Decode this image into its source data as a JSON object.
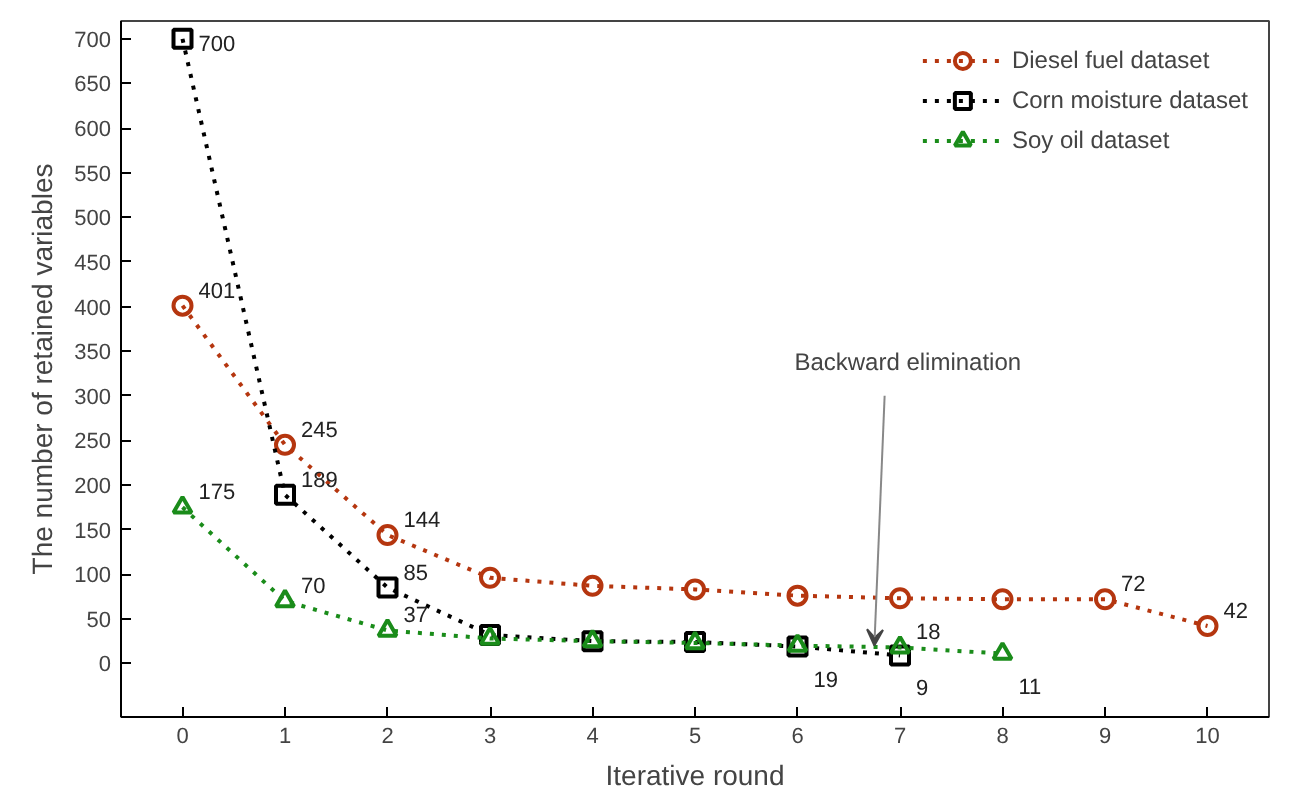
{
  "chart_data": {
    "type": "line",
    "xlabel": "Iterative round",
    "ylabel": "The number of retained variables",
    "xlim": [
      -0.6,
      10.6
    ],
    "xticks": [
      0,
      1,
      2,
      3,
      4,
      5,
      6,
      7,
      8,
      9,
      10
    ],
    "ylim": [
      -60,
      720
    ],
    "yticks": [
      0,
      50,
      100,
      150,
      200,
      250,
      300,
      350,
      400,
      450,
      500,
      550,
      600,
      650,
      700
    ],
    "grid": false,
    "legend": "top right",
    "line_style": "dotted",
    "series": [
      {
        "name": "Diesel fuel dataset",
        "color": "#b5360f",
        "marker": "circle",
        "x": [
          0,
          1,
          2,
          3,
          4,
          5,
          6,
          7,
          8,
          9,
          10
        ],
        "values": [
          401,
          245,
          144,
          96,
          87,
          83,
          76,
          73,
          72,
          72,
          42
        ],
        "value_labels": [
          "401",
          "245",
          "144",
          null,
          null,
          null,
          null,
          null,
          null,
          "72",
          "42"
        ]
      },
      {
        "name": "Corn moisture dataset",
        "color": "#000000",
        "marker": "square",
        "x": [
          0,
          1,
          2,
          3,
          4,
          5,
          6,
          7
        ],
        "values": [
          700,
          189,
          85,
          32,
          25,
          24,
          19,
          9
        ],
        "value_labels": [
          "700",
          "189",
          "85",
          null,
          null,
          null,
          "19",
          "9"
        ]
      },
      {
        "name": "Soy oil dataset",
        "color": "#1a8c1a",
        "marker": "triangle",
        "x": [
          0,
          1,
          2,
          3,
          4,
          5,
          6,
          7,
          8
        ],
        "values": [
          175,
          70,
          37,
          28,
          25,
          23,
          20,
          18,
          11
        ],
        "value_labels": [
          "175",
          "70",
          "37",
          null,
          null,
          null,
          null,
          "18",
          "11"
        ]
      }
    ],
    "annotations": [
      {
        "text": "Backward elimination",
        "x": 6.75,
        "y": 20
      }
    ]
  }
}
